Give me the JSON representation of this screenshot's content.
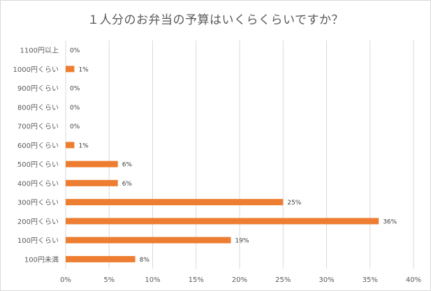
{
  "chart_data": {
    "type": "bar",
    "orientation": "horizontal",
    "title": "１人分のお弁当の予算はいくらくらいですか？",
    "categories": [
      "1100円以上",
      "1000円くらい",
      "900円くらい",
      "800円くらい",
      "700円くらい",
      "600円くらい",
      "500円くらい",
      "400円くらい",
      "300円くらい",
      "200円くらい",
      "100円くらい",
      "100円未満"
    ],
    "values": [
      0,
      1,
      0,
      0,
      0,
      1,
      6,
      6,
      25,
      36,
      19,
      8
    ],
    "value_labels": [
      "0%",
      "1%",
      "0%",
      "0%",
      "0%",
      "1%",
      "6%",
      "6%",
      "25%",
      "36%",
      "19%",
      "8%"
    ],
    "x_ticks": [
      0,
      5,
      10,
      15,
      20,
      25,
      30,
      35,
      40
    ],
    "x_tick_labels": [
      "0%",
      "5%",
      "10%",
      "15%",
      "20%",
      "25%",
      "30%",
      "35%",
      "40%"
    ],
    "xlim": [
      0,
      40
    ],
    "grid": true,
    "bar_color": "#ED7D31",
    "grid_color": "#D9D9D9",
    "xlabel": "",
    "ylabel": ""
  }
}
